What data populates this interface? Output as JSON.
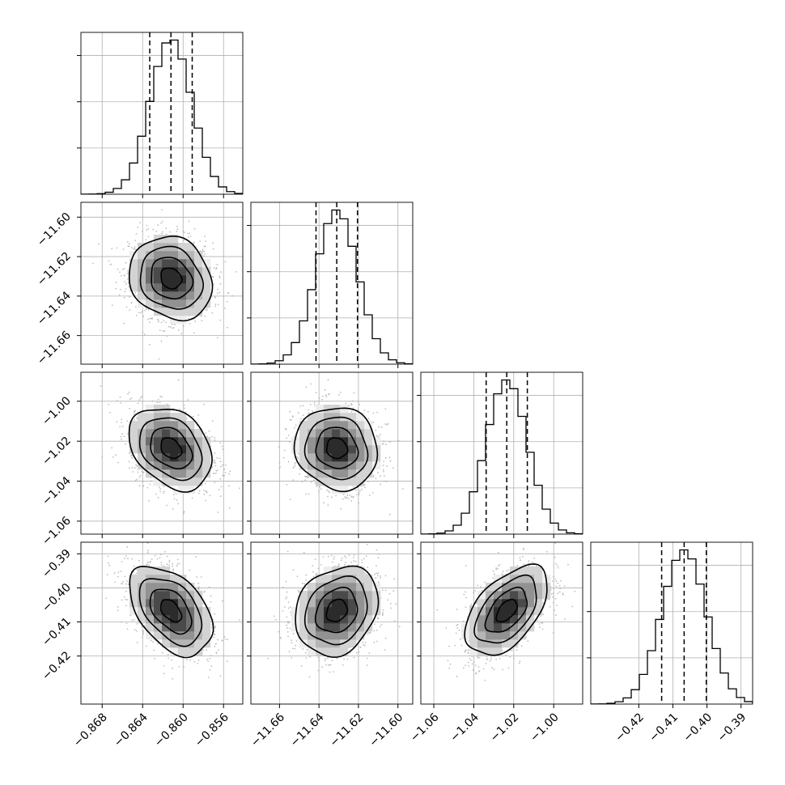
{
  "chart_data": {
    "type": "corner",
    "grid": true,
    "title": "",
    "parameters": [
      {
        "mean": -0.8612,
        "sd": 0.00205,
        "lo": -0.8701,
        "hi": -0.8541,
        "quantiles": [
          -0.8633,
          -0.8612,
          -0.8591
        ],
        "ticks": [
          -0.868,
          -0.864,
          -0.86,
          -0.856
        ],
        "tick_labels": [
          "−0.868",
          "−0.864",
          "−0.860",
          "−0.856"
        ]
      },
      {
        "mean": -11.631,
        "sd": 0.0105,
        "lo": -11.6745,
        "hi": -11.5925,
        "quantiles": [
          -11.6415,
          -11.631,
          -11.6205
        ],
        "ticks": [
          -11.66,
          -11.64,
          -11.62,
          -11.6
        ],
        "tick_labels": [
          "−11.66",
          "−11.64",
          "−11.62",
          "−11.60"
        ]
      },
      {
        "mean": -1.0235,
        "sd": 0.0103,
        "lo": -1.0665,
        "hi": -0.9855,
        "quantiles": [
          -1.0338,
          -1.0235,
          -1.0132
        ],
        "ticks": [
          -1.06,
          -1.04,
          -1.02,
          -1.0
        ],
        "tick_labels": [
          "−1.06",
          "−1.04",
          "−1.02",
          "−1.00"
        ]
      },
      {
        "mean": -0.4067,
        "sd": 0.00655,
        "lo": -0.4341,
        "hi": -0.3866,
        "quantiles": [
          -0.4133,
          -0.4067,
          -0.4002
        ],
        "ticks": [
          -0.42,
          -0.41,
          -0.4,
          -0.39
        ],
        "tick_labels": [
          "−0.42",
          "−0.41",
          "−0.40",
          "−0.39"
        ]
      }
    ],
    "correlations": [
      {
        "row": 1,
        "col": 0,
        "rho": -0.15
      },
      {
        "row": 2,
        "col": 0,
        "rho": -0.3
      },
      {
        "row": 2,
        "col": 1,
        "rho": -0.08
      },
      {
        "row": 3,
        "col": 0,
        "rho": -0.45
      },
      {
        "row": 3,
        "col": 1,
        "rho": 0.2
      },
      {
        "row": 3,
        "col": 2,
        "rho": 0.52
      }
    ],
    "contour_levels": [
      0.5,
      1.0,
      1.5,
      2.0
    ],
    "colors": {
      "line": "#000000",
      "grid": "#b0b0b0",
      "points": "#bdbdbd",
      "density_dark": "#2b2b2b"
    }
  }
}
